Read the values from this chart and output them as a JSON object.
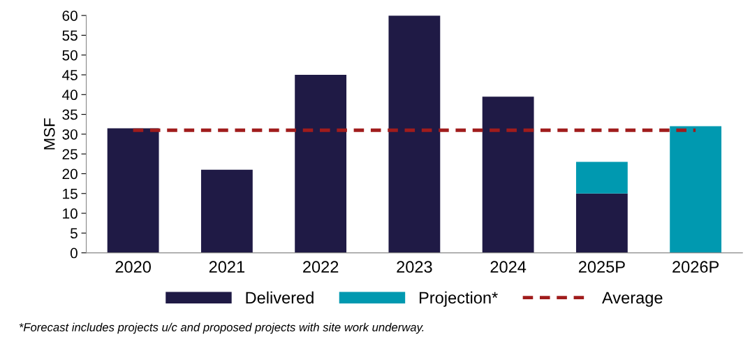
{
  "chart_data": {
    "type": "bar",
    "stacked": true,
    "ylabel": "MSF",
    "categories": [
      "2020",
      "2021",
      "2022",
      "2023",
      "2024",
      "2025P",
      "2026P"
    ],
    "series": [
      {
        "name": "Delivered",
        "color": "#1f1a45",
        "values": [
          31.5,
          21,
          45,
          60,
          39.5,
          15,
          null
        ]
      },
      {
        "name": "Projection*",
        "color": "#0099b0",
        "values": [
          null,
          null,
          null,
          null,
          null,
          8,
          32
        ]
      },
      {
        "name": "Average",
        "type": "line",
        "color": "#a01c1c",
        "line_style": "dashed",
        "values": [
          31,
          31,
          31,
          31,
          31,
          31,
          31
        ]
      }
    ],
    "ylim": [
      0,
      60
    ],
    "yticks": [
      0,
      5,
      10,
      15,
      20,
      25,
      30,
      35,
      40,
      45,
      50,
      55,
      60
    ],
    "grid": false,
    "legend": "bottom",
    "annotations": [
      "*Forecast includes projects u/c and proposed projects with site work underway."
    ]
  }
}
